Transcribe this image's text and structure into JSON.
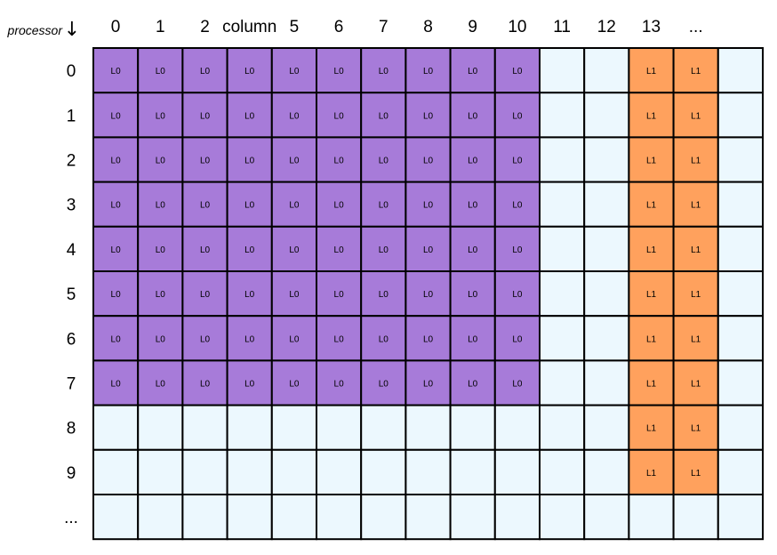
{
  "axis": {
    "row_title": "processor",
    "row_arrow": "↓"
  },
  "columns": [
    "0",
    "1",
    "2",
    "column",
    "5",
    "6",
    "7",
    "8",
    "9",
    "10",
    "11",
    "12",
    "13",
    "..."
  ],
  "rows": [
    "0",
    "1",
    "2",
    "3",
    "4",
    "5",
    "6",
    "7",
    "8",
    "9",
    "..."
  ],
  "colors": {
    "empty": "#ecf8fe",
    "L0": "#a77bd9",
    "L1": "#ffa15d",
    "border": "#000000"
  },
  "cells": [
    [
      "L0",
      "L0",
      "L0",
      "L0",
      "L0",
      "L0",
      "L0",
      "L0",
      "L0",
      "L0",
      "",
      "",
      "L1",
      "L1",
      ""
    ],
    [
      "L0",
      "L0",
      "L0",
      "L0",
      "L0",
      "L0",
      "L0",
      "L0",
      "L0",
      "L0",
      "",
      "",
      "L1",
      "L1",
      ""
    ],
    [
      "L0",
      "L0",
      "L0",
      "L0",
      "L0",
      "L0",
      "L0",
      "L0",
      "L0",
      "L0",
      "",
      "",
      "L1",
      "L1",
      ""
    ],
    [
      "L0",
      "L0",
      "L0",
      "L0",
      "L0",
      "L0",
      "L0",
      "L0",
      "L0",
      "L0",
      "",
      "",
      "L1",
      "L1",
      ""
    ],
    [
      "L0",
      "L0",
      "L0",
      "L0",
      "L0",
      "L0",
      "L0",
      "L0",
      "L0",
      "L0",
      "",
      "",
      "L1",
      "L1",
      ""
    ],
    [
      "L0",
      "L0",
      "L0",
      "L0",
      "L0",
      "L0",
      "L0",
      "L0",
      "L0",
      "L0",
      "",
      "",
      "L1",
      "L1",
      ""
    ],
    [
      "L0",
      "L0",
      "L0",
      "L0",
      "L0",
      "L0",
      "L0",
      "L0",
      "L0",
      "L0",
      "",
      "",
      "L1",
      "L1",
      ""
    ],
    [
      "L0",
      "L0",
      "L0",
      "L0",
      "L0",
      "L0",
      "L0",
      "L0",
      "L0",
      "L0",
      "",
      "",
      "L1",
      "L1",
      ""
    ],
    [
      "",
      "",
      "",
      "",
      "",
      "",
      "",
      "",
      "",
      "",
      "",
      "",
      "L1",
      "L1",
      ""
    ],
    [
      "",
      "",
      "",
      "",
      "",
      "",
      "",
      "",
      "",
      "",
      "",
      "",
      "L1",
      "L1",
      ""
    ],
    [
      "",
      "",
      "",
      "",
      "",
      "",
      "",
      "",
      "",
      "",
      "",
      "",
      "",
      "",
      ""
    ]
  ]
}
